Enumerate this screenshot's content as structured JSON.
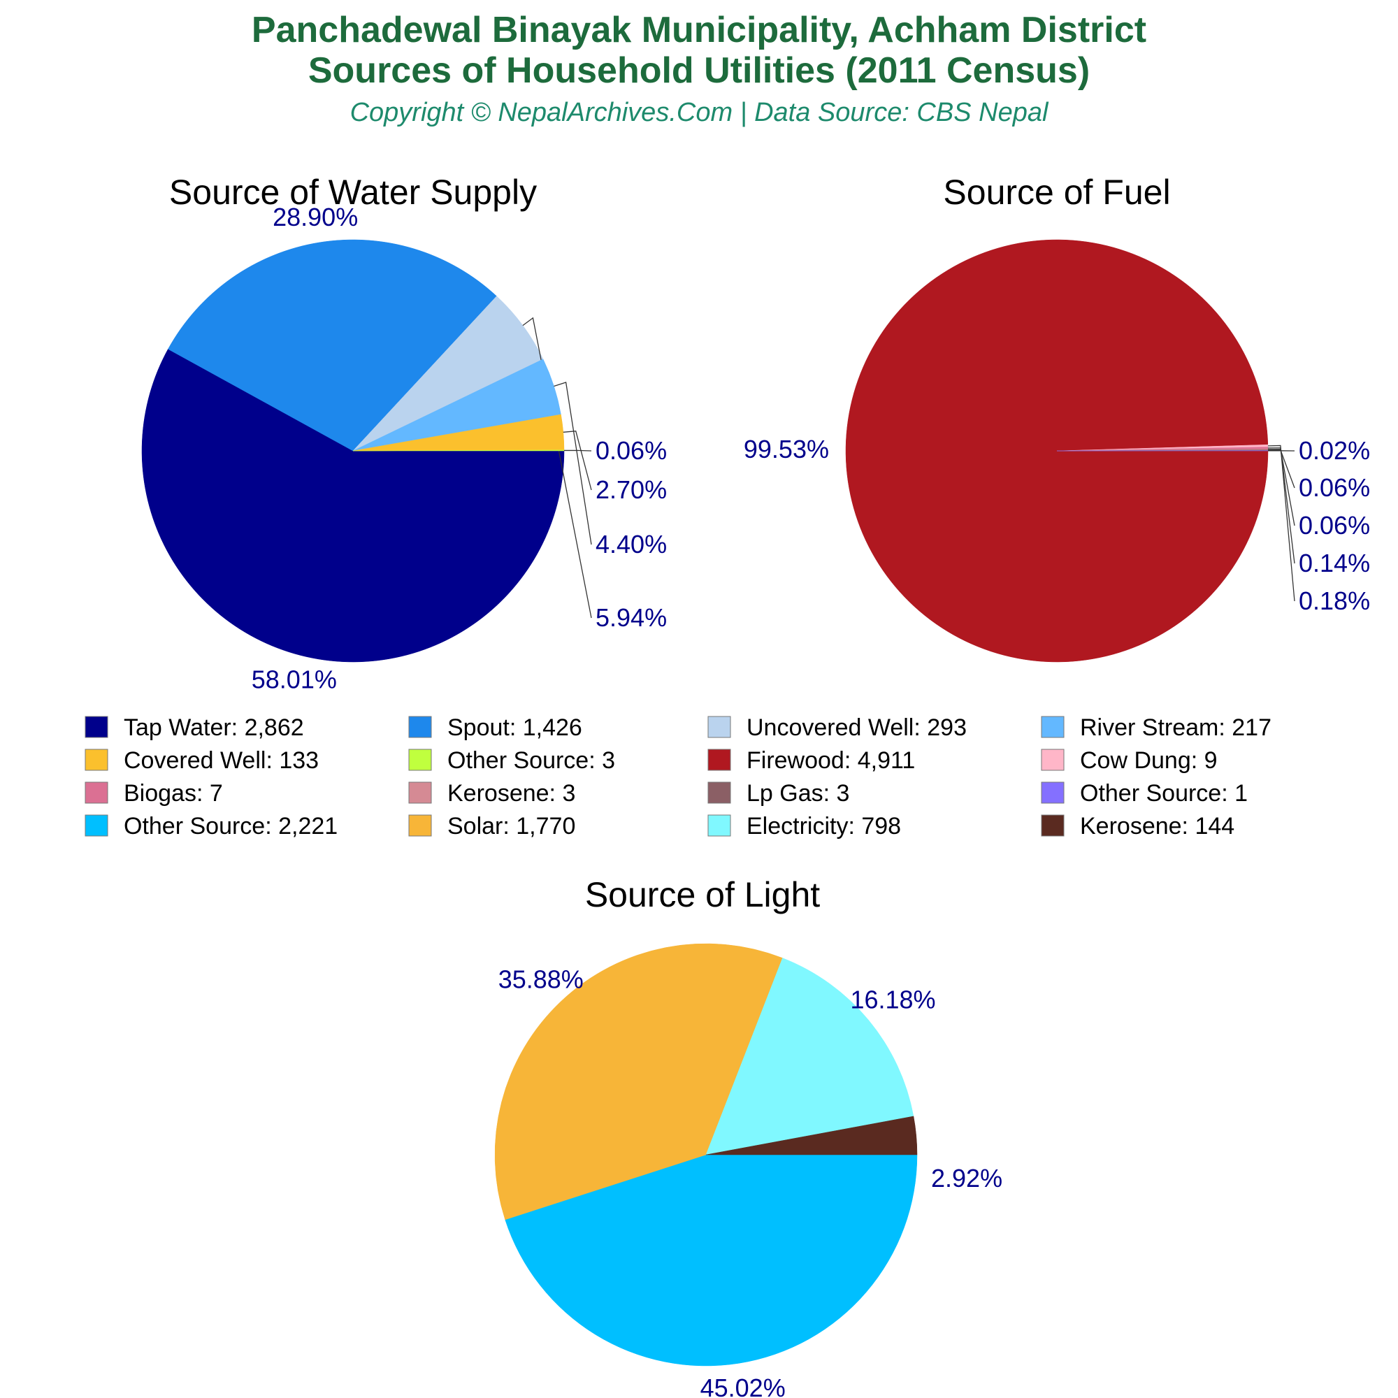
{
  "header": {
    "title_line1": "Panchadewal Binayak Municipality, Achham District",
    "title_line2": "Sources of Household Utilities (2011 Census)",
    "subtitle": "Copyright © NepalArchives.Com | Data Source: CBS Nepal"
  },
  "label_color": "#00008b",
  "chart_data": [
    {
      "type": "pie",
      "title": "Source of Water Supply",
      "slices": [
        {
          "name": "Tap Water",
          "value": 2862,
          "percent": "58.01%",
          "color": "#00008b"
        },
        {
          "name": "Spout",
          "value": 1426,
          "percent": "28.90%",
          "color": "#1e88ec"
        },
        {
          "name": "Uncovered Well",
          "value": 293,
          "percent": "5.94%",
          "color": "#bad3ee"
        },
        {
          "name": "River Stream",
          "value": 217,
          "percent": "4.40%",
          "color": "#63b8ff"
        },
        {
          "name": "Covered Well",
          "value": 133,
          "percent": "2.70%",
          "color": "#fbc02d"
        },
        {
          "name": "Other Source",
          "value": 3,
          "percent": "0.06%",
          "color": "#c0ff3e"
        }
      ]
    },
    {
      "type": "pie",
      "title": "Source of Fuel",
      "slices": [
        {
          "name": "Firewood",
          "value": 4911,
          "percent": "99.53%",
          "color": "#b01820"
        },
        {
          "name": "Cow Dung",
          "value": 9,
          "percent": "0.18%",
          "color": "#ffb6c8"
        },
        {
          "name": "Biogas",
          "value": 7,
          "percent": "0.14%",
          "color": "#db7093"
        },
        {
          "name": "Kerosene",
          "value": 3,
          "percent": "0.06%",
          "color": "#d58a94"
        },
        {
          "name": "Lp Gas",
          "value": 3,
          "percent": "0.06%",
          "color": "#8b5f65"
        },
        {
          "name": "Other Source",
          "value": 1,
          "percent": "0.02%",
          "color": "#8470ff"
        }
      ]
    },
    {
      "type": "pie",
      "title": "Source of Light",
      "slices": [
        {
          "name": "Other Source",
          "value": 2221,
          "percent": "45.02%",
          "color": "#00bfff"
        },
        {
          "name": "Solar",
          "value": 1770,
          "percent": "35.88%",
          "color": "#f7b538"
        },
        {
          "name": "Electricity",
          "value": 798,
          "percent": "16.18%",
          "color": "#80f8ff"
        },
        {
          "name": "Kerosene",
          "value": 144,
          "percent": "2.92%",
          "color": "#5a2a20"
        }
      ]
    }
  ],
  "legend": [
    {
      "text": "Tap Water: 2,862",
      "color": "#00008b"
    },
    {
      "text": "Spout: 1,426",
      "color": "#1e88ec"
    },
    {
      "text": "Uncovered Well: 293",
      "color": "#bad3ee"
    },
    {
      "text": "River Stream: 217",
      "color": "#63b8ff"
    },
    {
      "text": "Covered Well: 133",
      "color": "#fbc02d"
    },
    {
      "text": "Other Source: 3",
      "color": "#c0ff3e"
    },
    {
      "text": "Firewood: 4,911",
      "color": "#b01820"
    },
    {
      "text": "Cow Dung: 9",
      "color": "#ffb6c8"
    },
    {
      "text": "Biogas: 7",
      "color": "#db7093"
    },
    {
      "text": "Kerosene: 3",
      "color": "#d58a94"
    },
    {
      "text": "Lp Gas: 3",
      "color": "#8b5f65"
    },
    {
      "text": "Other Source: 1",
      "color": "#8470ff"
    },
    {
      "text": "Other Source: 2,221",
      "color": "#00bfff"
    },
    {
      "text": "Solar: 1,770",
      "color": "#f7b538"
    },
    {
      "text": "Electricity: 798",
      "color": "#80f8ff"
    },
    {
      "text": "Kerosene: 144",
      "color": "#5a2a20"
    }
  ]
}
